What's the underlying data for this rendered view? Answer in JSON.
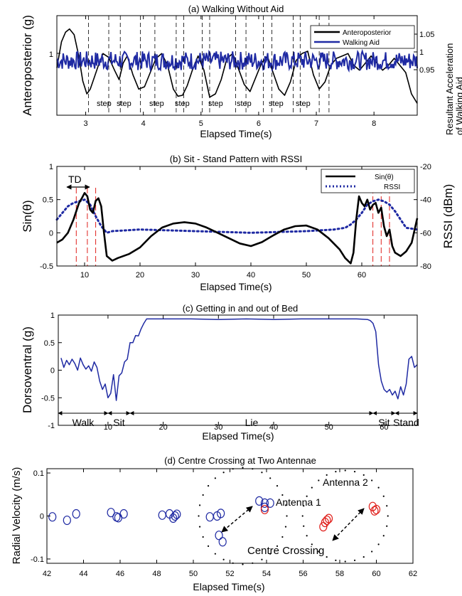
{
  "chart_data": [
    {
      "type": "line",
      "title": "(a) Walking Without Aid",
      "xlabel": "Elapsed Time(s)",
      "ylabel": "Anteroposterior (g)",
      "y2label": [
        "Resultant  Acceleration",
        "of Walking Aid"
      ],
      "xlim": [
        2.5,
        8.75
      ],
      "ylim": [
        0,
        2.1
      ],
      "y2lim": [
        0.885,
        1.095
      ],
      "xticks": [
        "3",
        "4",
        "5",
        "6",
        "7",
        "8"
      ],
      "yticks": [
        "1"
      ],
      "y2ticks": [
        "1.05",
        "1",
        "0.95"
      ],
      "legend_position": "top-right",
      "series": [
        {
          "name": "Anteroposterior",
          "color": "#000000",
          "axis": "left",
          "x": [
            2.5,
            2.58,
            2.65,
            2.72,
            2.8,
            2.88,
            2.95,
            3.02,
            3.08,
            3.15,
            3.22,
            3.3,
            3.4,
            3.5,
            3.58,
            3.65,
            3.72,
            3.82,
            3.92,
            4.02,
            4.12,
            4.22,
            4.32,
            4.42,
            4.52,
            4.6,
            4.68,
            4.76,
            4.85,
            4.95,
            5.05,
            5.15,
            5.25,
            5.35,
            5.45,
            5.55,
            5.65,
            5.75,
            5.85,
            5.95,
            6.05,
            6.15,
            6.25,
            6.35,
            6.45,
            6.55,
            6.65,
            6.75,
            6.85,
            6.95,
            7.05,
            7.15,
            7.25,
            7.35,
            7.45,
            7.55,
            7.65,
            7.75,
            7.85,
            7.95,
            8.05,
            8.15,
            8.25,
            8.35,
            8.45,
            8.55,
            8.65,
            8.75
          ],
          "y": [
            1.0,
            1.55,
            1.75,
            1.82,
            1.7,
            1.25,
            0.72,
            0.45,
            0.55,
            0.8,
            1.05,
            1.3,
            1.22,
            0.95,
            0.75,
            1.1,
            1.25,
            0.85,
            0.55,
            0.6,
            0.9,
            1.2,
            1.3,
            1.05,
            0.55,
            0.4,
            0.42,
            0.62,
            0.95,
            1.25,
            0.95,
            0.38,
            0.45,
            0.75,
            1.2,
            1.3,
            0.98,
            0.65,
            0.5,
            0.8,
            1.1,
            1.25,
            0.9,
            0.55,
            0.42,
            0.7,
            1.15,
            1.3,
            1.35,
            0.85,
            0.55,
            0.7,
            1.05,
            1.2,
            1.25,
            1.3,
            1.05,
            0.95,
            1.1,
            1.25,
            1.1,
            0.95,
            1.05,
            1.2,
            1.05,
            0.9,
            0.45,
            0.25
          ]
        },
        {
          "name": "Walking Aid",
          "color": "#1f2aa3",
          "axis": "right",
          "x_range": [
            2.5,
            8.75
          ],
          "mean": 1.0,
          "amplitude": 0.02,
          "samples": 400
        }
      ],
      "step_markers": [
        3.05,
        3.4,
        3.6,
        3.95,
        4.2,
        4.57,
        4.7,
        5.02,
        5.15,
        5.6,
        5.78,
        6.08,
        6.23,
        6.6,
        6.72,
        7.05,
        7.22
      ],
      "annotations": [
        "step",
        "step",
        "step",
        "step",
        "step",
        "step",
        "step",
        "step"
      ]
    },
    {
      "type": "line",
      "title": "(b) Sit - Stand Pattern with RSSI",
      "xlabel": "Elapsed Time(s)",
      "ylabel": "Sin(θ)",
      "y2label": "RSSI (dBm)",
      "xlim": [
        5,
        70
      ],
      "ylim": [
        -0.5,
        1
      ],
      "y2lim": [
        -80,
        -20
      ],
      "xticks": [
        "10",
        "20",
        "30",
        "40",
        "50",
        "60"
      ],
      "yticks": [
        "1",
        "0.5",
        "0",
        "-0.5"
      ],
      "y2ticks": [
        "-20",
        "-40",
        "-60",
        "-80"
      ],
      "legend_position": "top-right",
      "series": [
        {
          "name": "Sin(θ)",
          "color": "#000000",
          "axis": "left",
          "x": [
            5,
            6,
            7,
            8,
            9,
            9.5,
            10,
            10.5,
            11,
            11.5,
            12,
            12.5,
            13,
            13.5,
            14,
            15,
            16,
            18,
            20,
            22,
            24,
            26,
            28,
            30,
            32,
            34,
            36,
            38,
            40,
            42,
            44,
            46,
            48,
            50,
            52,
            54,
            56,
            57,
            58,
            58.5,
            59,
            59.5,
            60,
            60.5,
            61,
            61.5,
            62,
            62.5,
            63,
            63.5,
            64,
            64.5,
            65,
            65.5,
            66,
            67,
            68,
            69,
            70
          ],
          "y": [
            -0.15,
            -0.1,
            0.0,
            0.2,
            0.45,
            0.52,
            0.6,
            0.55,
            0.35,
            0.3,
            0.48,
            0.52,
            0.4,
            0.0,
            -0.35,
            -0.42,
            -0.38,
            -0.32,
            -0.22,
            -0.05,
            0.08,
            0.14,
            0.16,
            0.14,
            0.08,
            0.0,
            -0.08,
            -0.16,
            -0.2,
            -0.14,
            -0.04,
            0.05,
            0.1,
            0.11,
            0.05,
            -0.08,
            -0.25,
            -0.38,
            -0.46,
            -0.3,
            0.2,
            0.55,
            0.45,
            0.4,
            0.5,
            0.35,
            0.42,
            0.45,
            0.3,
            0.38,
            0.1,
            -0.05,
            0.05,
            -0.2,
            -0.3,
            -0.35,
            -0.28,
            -0.15,
            0.22
          ]
        },
        {
          "name": "RSSI",
          "color": "#1f2aa3",
          "axis": "right",
          "x": [
            5,
            6,
            7,
            8,
            9,
            10,
            11,
            12,
            13,
            14,
            15,
            20,
            30,
            40,
            50,
            55,
            57,
            58,
            59,
            60,
            61,
            62,
            63,
            64,
            65,
            66,
            67,
            68,
            70
          ],
          "y": [
            -52,
            -48,
            -44,
            -42,
            -41,
            -40,
            -43,
            -50,
            -56,
            -60,
            -59,
            -58,
            -59,
            -60,
            -59,
            -58,
            -57,
            -55,
            -52,
            -48,
            -43,
            -41,
            -40,
            -41,
            -43,
            -47,
            -52,
            -57,
            -58
          ]
        }
      ],
      "event_markers": [
        8.5,
        10.5,
        12,
        62,
        63.5,
        65
      ],
      "annotations": [
        "TD"
      ]
    },
    {
      "type": "line",
      "title": "(c) Getting in and out of Bed",
      "xlabel": "Elapsed Time(s)",
      "ylabel": "Dorsoventral (g)",
      "xlim": [
        1,
        66
      ],
      "ylim": [
        -1,
        1
      ],
      "xticks": [
        "10",
        "20",
        "30",
        "40",
        "50",
        "60"
      ],
      "yticks": [
        "1",
        "0.5",
        "0",
        "-0.5",
        "-1"
      ],
      "series": [
        {
          "name": "",
          "color": "#1f2aa3",
          "x": [
            1.5,
            2,
            2.5,
            3,
            3.5,
            4,
            4.5,
            5,
            5.5,
            6,
            6.5,
            7,
            7.5,
            8,
            8.5,
            9,
            9.5,
            10,
            10.5,
            11,
            11.5,
            12,
            12.5,
            13,
            13.5,
            14,
            14.5,
            15,
            15.5,
            16,
            16.5,
            17,
            20,
            25,
            30,
            35,
            40,
            45,
            50,
            55,
            57,
            57.5,
            58,
            58.5,
            59,
            59.5,
            60,
            60.5,
            61,
            61.5,
            62,
            62.5,
            63,
            63.5,
            64,
            64.5,
            65,
            65.5,
            66
          ],
          "y": [
            0.22,
            0.05,
            0.18,
            0.1,
            0.2,
            0.12,
            0.0,
            0.22,
            0.1,
            0.02,
            0.08,
            -0.02,
            0.15,
            0.05,
            -0.2,
            -0.35,
            -0.25,
            -0.5,
            -0.42,
            -0.08,
            -0.55,
            -0.1,
            -0.05,
            0.15,
            0.2,
            0.5,
            0.5,
            0.63,
            0.62,
            0.75,
            0.85,
            0.93,
            0.93,
            0.93,
            0.92,
            0.93,
            0.92,
            0.93,
            0.93,
            0.93,
            0.92,
            0.9,
            0.85,
            0.7,
            0.1,
            -0.2,
            -0.35,
            -0.4,
            -0.35,
            -0.45,
            -0.38,
            -0.52,
            -0.3,
            -0.45,
            -0.25,
            0.2,
            0.25,
            0.05,
            0.1
          ]
        }
      ],
      "phases": [
        {
          "label": "Walk",
          "from": 1,
          "to": 10
        },
        {
          "label": "Sit",
          "from": 10,
          "to": 14
        },
        {
          "label": "Lie",
          "from": 14,
          "to": 58
        },
        {
          "label": "Sit",
          "from": 58,
          "to": 62
        },
        {
          "label": "Stand",
          "from": 62,
          "to": 66
        }
      ]
    },
    {
      "type": "scatter",
      "title": "(d) Centre Crossing at  Two Antennae",
      "xlabel": "Elapsed Time(s)",
      "ylabel": "Radial Velocity (m/s)",
      "xlim": [
        42,
        62
      ],
      "ylim": [
        -0.11,
        0.11
      ],
      "xticks": [
        "42",
        "44",
        "46",
        "48",
        "50",
        "52",
        "54",
        "56",
        "58",
        "60",
        "62"
      ],
      "yticks": [
        "0.1",
        "0",
        "-0.1"
      ],
      "series": [
        {
          "name": "",
          "color": "#1f2aa3",
          "points": [
            [
              42.3,
              -0.002
            ],
            [
              43.1,
              -0.01
            ],
            [
              43.6,
              0.005
            ],
            [
              45.5,
              0.008
            ],
            [
              45.8,
              -0.002
            ],
            [
              45.9,
              -0.004
            ],
            [
              46.2,
              0.005
            ],
            [
              48.3,
              0.002
            ],
            [
              48.7,
              0.005
            ],
            [
              48.9,
              -0.005
            ],
            [
              49.0,
              0.0
            ],
            [
              49.1,
              0.004
            ],
            [
              50.9,
              -0.002
            ],
            [
              51.3,
              0.0
            ],
            [
              51.5,
              0.006
            ],
            [
              51.4,
              -0.045
            ],
            [
              51.6,
              -0.06
            ],
            [
              53.6,
              0.035
            ],
            [
              53.9,
              0.03
            ],
            [
              54.2,
              0.03
            ],
            [
              53.9,
              0.02
            ]
          ]
        },
        {
          "name": "",
          "color": "#e0201c",
          "points": [
            [
              53.9,
              0.015
            ],
            [
              57.1,
              -0.025
            ],
            [
              57.2,
              -0.015
            ],
            [
              57.3,
              -0.01
            ],
            [
              57.4,
              -0.006
            ],
            [
              59.8,
              0.022
            ],
            [
              60.0,
              0.015
            ],
            [
              59.9,
              0.012
            ]
          ]
        }
      ],
      "annotations": [
        "Antenna 1",
        "Antenna 2",
        "Centre Crossing"
      ]
    }
  ]
}
